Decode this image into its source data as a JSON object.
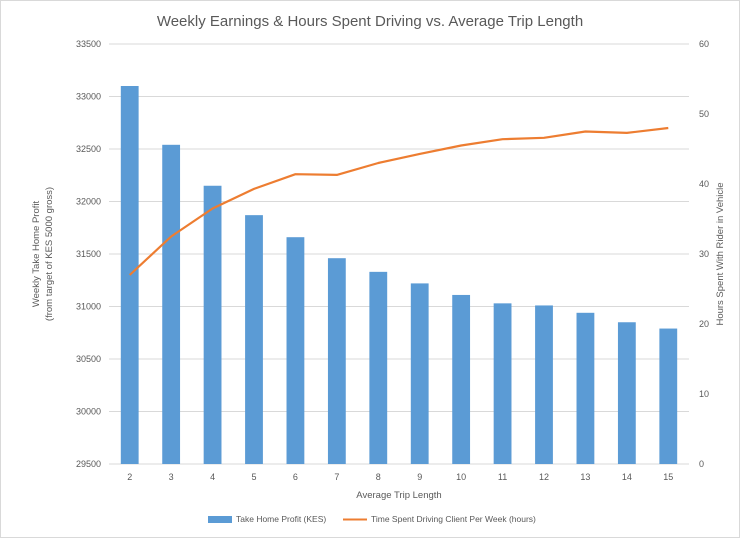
{
  "chart_data": {
    "type": "bar",
    "title": "Weekly Earnings & Hours Spent Driving vs. Average Trip Length",
    "xlabel": "Average Trip Length",
    "ylabel_left_line1": "Weekly Take Home Profit",
    "ylabel_left_line2": "(from target of KES 5000 gross)",
    "ylabel_right": "Hours Spent With Rider in Vehicle",
    "categories": [
      "2",
      "3",
      "4",
      "5",
      "6",
      "7",
      "8",
      "9",
      "10",
      "11",
      "12",
      "13",
      "14",
      "15"
    ],
    "ylim_left": [
      29500,
      33500
    ],
    "left_ticks": [
      29500,
      30000,
      30500,
      31000,
      31500,
      32000,
      32500,
      33000,
      33500
    ],
    "ylim_right": [
      0,
      60
    ],
    "right_ticks": [
      0,
      10,
      20,
      30,
      40,
      50,
      60
    ],
    "series": [
      {
        "name": "Take Home Profit (KES)",
        "type": "bar",
        "axis": "left",
        "color": "#5b9bd5",
        "values": [
          33100,
          32540,
          32150,
          31870,
          31660,
          31460,
          31330,
          31220,
          31110,
          31030,
          31010,
          30940,
          30850,
          30790
        ]
      },
      {
        "name": "Time Spent Driving Client Per Week (hours)",
        "type": "line",
        "axis": "right",
        "color": "#ed7d31",
        "values": [
          27,
          32.5,
          36.5,
          39.3,
          41.4,
          41.3,
          43,
          44.3,
          45.5,
          46.4,
          46.6,
          47.5,
          47.3,
          48
        ]
      }
    ],
    "grid": true,
    "legend": "bottom"
  }
}
